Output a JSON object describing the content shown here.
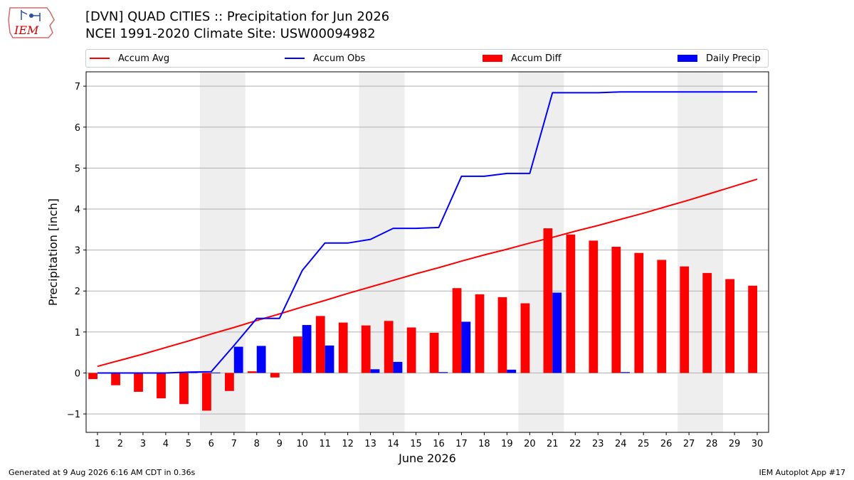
{
  "logo": {
    "text": "IEM"
  },
  "header": {
    "title_line1": "[DVN] QUAD CITIES :: Precipitation for Jun 2026",
    "title_line2": "NCEI 1991-2020 Climate Site: USW00094982"
  },
  "legend": {
    "items": [
      {
        "label": "Accum Avg",
        "color": "#ff0000",
        "kind": "line"
      },
      {
        "label": "Accum Obs",
        "color": "#0000ff",
        "kind": "line"
      },
      {
        "label": "Accum Diff",
        "color": "#ff0000",
        "kind": "box"
      },
      {
        "label": "Daily Precip",
        "color": "#0000ff",
        "kind": "box"
      }
    ]
  },
  "footer": {
    "left": "Generated at 9 Aug 2026 6:16 AM CDT in 0.36s",
    "right": "IEM Autoplot App #17"
  },
  "chart_data": {
    "type": "bar",
    "xlabel": "June 2026",
    "ylabel": "Precipitation [inch]",
    "ylim": [
      -1.45,
      7.35
    ],
    "yticks": [
      -1,
      0,
      1,
      2,
      3,
      4,
      5,
      6,
      7
    ],
    "x": [
      1,
      2,
      3,
      4,
      5,
      6,
      7,
      8,
      9,
      10,
      11,
      12,
      13,
      14,
      15,
      16,
      17,
      18,
      19,
      20,
      21,
      22,
      23,
      24,
      25,
      26,
      27,
      28,
      29,
      30
    ],
    "weekend_shading": [
      [
        6,
        7
      ],
      [
        13,
        14
      ],
      [
        20,
        21
      ],
      [
        27,
        28
      ]
    ],
    "grid": true,
    "colors": {
      "avg": "#ff0000",
      "obs": "#0000ff",
      "diff": "#ff0000",
      "daily": "#0000ff",
      "weekend": "#eeeeee",
      "grid": "#b0b0b0"
    },
    "series": [
      {
        "name": "Accum Avg",
        "kind": "line",
        "values": [
          0.16,
          0.31,
          0.46,
          0.62,
          0.78,
          0.95,
          1.11,
          1.28,
          1.44,
          1.61,
          1.77,
          1.94,
          2.1,
          2.26,
          2.42,
          2.57,
          2.73,
          2.88,
          3.02,
          3.17,
          3.31,
          3.46,
          3.6,
          3.75,
          3.9,
          4.06,
          4.22,
          4.39,
          4.56,
          4.73
        ]
      },
      {
        "name": "Accum Obs",
        "kind": "line",
        "values": [
          0,
          0,
          0,
          0,
          0.02,
          0.03,
          0.67,
          1.33,
          1.33,
          2.5,
          3.17,
          3.17,
          3.26,
          3.53,
          3.53,
          3.55,
          4.8,
          4.8,
          4.87,
          4.87,
          6.84,
          6.84,
          6.84,
          6.86,
          6.86,
          6.86,
          6.86,
          6.86,
          6.86,
          6.86
        ]
      },
      {
        "name": "Accum Diff",
        "kind": "bar",
        "values": [
          -0.15,
          -0.3,
          -0.46,
          -0.62,
          -0.76,
          -0.92,
          -0.44,
          0.04,
          -0.11,
          0.89,
          1.39,
          1.23,
          1.16,
          1.27,
          1.11,
          0.98,
          2.07,
          1.92,
          1.85,
          1.7,
          3.53,
          3.38,
          3.23,
          3.08,
          2.93,
          2.76,
          2.6,
          2.44,
          2.29,
          2.13
        ]
      },
      {
        "name": "Daily Precip",
        "kind": "bar",
        "values": [
          0,
          0,
          0,
          0,
          0.02,
          0.01,
          0.64,
          0.66,
          0,
          1.17,
          0.67,
          0,
          0.09,
          0.27,
          0,
          0.02,
          1.25,
          0,
          0.08,
          0,
          1.96,
          0,
          0,
          0.02,
          0,
          0,
          0,
          0,
          0,
          0
        ]
      }
    ]
  }
}
